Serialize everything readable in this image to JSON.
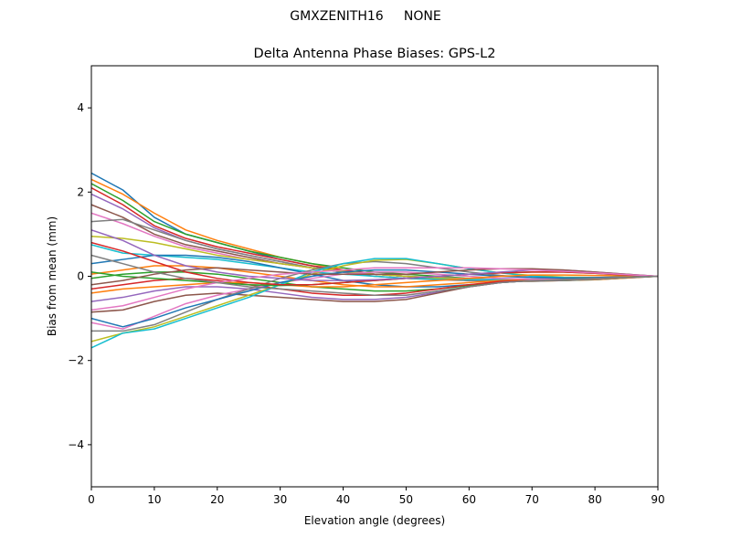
{
  "figure": {
    "suptitle": "GMXZENITH16     NONE"
  },
  "chart_data": {
    "type": "line",
    "title": "Delta Antenna Phase Biases: GPS-L2",
    "xlabel": "Elevation angle (degrees)",
    "ylabel": "Bias from mean (mm)",
    "xlim": [
      0,
      90
    ],
    "ylim": [
      -5,
      5
    ],
    "xticks": [
      0,
      10,
      20,
      30,
      40,
      50,
      60,
      70,
      80,
      90
    ],
    "xtick_labels": [
      "0",
      "10",
      "20",
      "30",
      "40",
      "50",
      "60",
      "70",
      "80",
      "90"
    ],
    "yticks": [
      -4,
      -2,
      0,
      2,
      4
    ],
    "ytick_labels": [
      "−4",
      "−2",
      "0",
      "2",
      "4"
    ],
    "grid": false,
    "legend": "none",
    "colors": [
      "#1f77b4",
      "#ff7f0e",
      "#2ca02c",
      "#d62728",
      "#9467bd",
      "#8c564b",
      "#e377c2",
      "#7f7f7f",
      "#bcbd22",
      "#17becf"
    ],
    "x": [
      0,
      5,
      10,
      15,
      20,
      25,
      30,
      35,
      40,
      45,
      50,
      55,
      60,
      65,
      70,
      75,
      80,
      85,
      90
    ],
    "series": [
      {
        "values": [
          2.45,
          2.05,
          1.4,
          1.0,
          0.8,
          0.6,
          0.4,
          0.25,
          0.1,
          0.05,
          0.0,
          -0.05,
          -0.1,
          -0.1,
          -0.1,
          -0.1,
          -0.08,
          -0.04,
          0
        ]
      },
      {
        "values": [
          2.3,
          1.95,
          1.5,
          1.1,
          0.85,
          0.65,
          0.45,
          0.3,
          0.15,
          0.05,
          0.0,
          -0.05,
          -0.1,
          -0.12,
          -0.12,
          -0.1,
          -0.08,
          -0.04,
          0
        ]
      },
      {
        "values": [
          2.2,
          1.8,
          1.3,
          1.0,
          0.8,
          0.6,
          0.45,
          0.3,
          0.2,
          0.1,
          0.05,
          0.0,
          -0.05,
          -0.08,
          -0.1,
          -0.1,
          -0.07,
          -0.03,
          0
        ]
      },
      {
        "values": [
          2.1,
          1.7,
          1.2,
          0.9,
          0.7,
          0.55,
          0.4,
          0.25,
          0.15,
          0.05,
          0.0,
          -0.05,
          -0.08,
          -0.1,
          -0.1,
          -0.09,
          -0.06,
          -0.03,
          0
        ]
      },
      {
        "values": [
          1.95,
          1.6,
          1.15,
          0.85,
          0.65,
          0.5,
          0.35,
          0.2,
          0.1,
          0.05,
          0.0,
          -0.03,
          -0.06,
          -0.08,
          -0.08,
          -0.07,
          -0.05,
          -0.02,
          0
        ]
      },
      {
        "values": [
          1.7,
          1.4,
          1.0,
          0.75,
          0.6,
          0.45,
          0.3,
          0.2,
          0.1,
          0.0,
          -0.05,
          -0.08,
          -0.1,
          -0.1,
          -0.1,
          -0.08,
          -0.05,
          -0.02,
          0
        ]
      },
      {
        "values": [
          1.5,
          1.25,
          0.95,
          0.7,
          0.55,
          0.4,
          0.3,
          0.2,
          0.1,
          0.05,
          0.0,
          -0.03,
          -0.06,
          -0.08,
          -0.08,
          -0.06,
          -0.04,
          -0.02,
          0
        ]
      },
      {
        "values": [
          1.3,
          1.35,
          1.1,
          0.85,
          0.65,
          0.5,
          0.35,
          0.2,
          0.1,
          0.05,
          0.0,
          -0.05,
          -0.1,
          -0.12,
          -0.12,
          -0.1,
          -0.07,
          -0.03,
          0
        ]
      },
      {
        "values": [
          0.95,
          0.9,
          0.8,
          0.65,
          0.5,
          0.4,
          0.3,
          0.2,
          0.12,
          0.05,
          0.0,
          -0.04,
          -0.07,
          -0.09,
          -0.09,
          -0.08,
          -0.05,
          -0.02,
          0
        ]
      },
      {
        "values": [
          0.75,
          0.55,
          0.5,
          0.45,
          0.4,
          0.3,
          0.2,
          0.1,
          0.05,
          0.0,
          -0.05,
          -0.07,
          -0.08,
          -0.08,
          -0.07,
          -0.06,
          -0.04,
          -0.02,
          0
        ]
      },
      {
        "values": [
          0.3,
          0.4,
          0.5,
          0.5,
          0.45,
          0.35,
          0.2,
          0.05,
          -0.1,
          -0.2,
          -0.25,
          -0.25,
          -0.2,
          -0.15,
          -0.1,
          -0.08,
          -0.05,
          -0.02,
          0
        ]
      },
      {
        "values": [
          0.05,
          0.15,
          0.25,
          0.25,
          0.2,
          0.1,
          0.0,
          -0.1,
          -0.2,
          -0.25,
          -0.25,
          -0.2,
          -0.15,
          -0.1,
          -0.08,
          -0.06,
          -0.04,
          -0.02,
          0
        ]
      },
      {
        "values": [
          -0.05,
          0.05,
          0.1,
          0.1,
          0.05,
          -0.05,
          -0.15,
          -0.25,
          -0.3,
          -0.35,
          -0.35,
          -0.3,
          -0.22,
          -0.15,
          -0.1,
          -0.07,
          -0.05,
          -0.02,
          0
        ]
      },
      {
        "values": [
          -0.3,
          -0.2,
          -0.1,
          -0.05,
          -0.1,
          -0.2,
          -0.3,
          -0.4,
          -0.45,
          -0.45,
          -0.4,
          -0.3,
          -0.2,
          -0.12,
          -0.1,
          -0.08,
          -0.05,
          -0.02,
          0
        ]
      },
      {
        "values": [
          -0.6,
          -0.5,
          -0.35,
          -0.25,
          -0.25,
          -0.3,
          -0.4,
          -0.5,
          -0.55,
          -0.55,
          -0.5,
          -0.38,
          -0.25,
          -0.15,
          -0.1,
          -0.08,
          -0.05,
          -0.02,
          0
        ]
      },
      {
        "values": [
          -0.85,
          -0.8,
          -0.6,
          -0.45,
          -0.4,
          -0.45,
          -0.5,
          -0.55,
          -0.6,
          -0.6,
          -0.55,
          -0.4,
          -0.25,
          -0.15,
          -0.1,
          -0.08,
          -0.05,
          -0.02,
          0
        ]
      },
      {
        "values": [
          -1.1,
          -1.25,
          -0.95,
          -0.65,
          -0.45,
          -0.3,
          -0.15,
          -0.05,
          0.05,
          0.1,
          0.1,
          0.05,
          0.0,
          -0.05,
          -0.07,
          -0.07,
          -0.05,
          -0.02,
          0
        ]
      },
      {
        "values": [
          -1.3,
          -1.3,
          -1.15,
          -0.85,
          -0.55,
          -0.3,
          -0.05,
          0.15,
          0.3,
          0.35,
          0.3,
          0.2,
          0.1,
          0.02,
          -0.03,
          -0.05,
          -0.04,
          -0.02,
          0
        ]
      },
      {
        "values": [
          -1.55,
          -1.35,
          -1.2,
          -0.95,
          -0.7,
          -0.45,
          -0.2,
          0.05,
          0.25,
          0.38,
          0.4,
          0.3,
          0.18,
          0.08,
          0.02,
          -0.02,
          -0.03,
          -0.02,
          0
        ]
      },
      {
        "values": [
          -1.7,
          -1.35,
          -1.25,
          -1.0,
          -0.75,
          -0.5,
          -0.2,
          0.1,
          0.3,
          0.42,
          0.42,
          0.3,
          0.18,
          0.08,
          0.0,
          -0.03,
          -0.04,
          -0.02,
          0
        ]
      },
      {
        "values": [
          -1.0,
          -1.2,
          -1.0,
          -0.75,
          -0.55,
          -0.35,
          -0.15,
          0.0,
          0.1,
          0.15,
          0.15,
          0.1,
          0.05,
          0.0,
          -0.03,
          -0.04,
          -0.03,
          -0.01,
          0
        ]
      },
      {
        "values": [
          -0.4,
          -0.3,
          -0.25,
          -0.2,
          -0.15,
          -0.15,
          -0.2,
          -0.25,
          -0.25,
          -0.2,
          -0.15,
          -0.1,
          -0.05,
          0.0,
          0.03,
          0.03,
          0.02,
          0.01,
          0
        ]
      },
      {
        "values": [
          0.1,
          0.0,
          -0.05,
          -0.1,
          -0.15,
          -0.2,
          -0.22,
          -0.2,
          -0.15,
          -0.1,
          -0.05,
          0.0,
          0.05,
          0.08,
          0.1,
          0.1,
          0.07,
          0.03,
          0
        ]
      },
      {
        "values": [
          0.8,
          0.6,
          0.35,
          0.1,
          -0.05,
          -0.15,
          -0.2,
          -0.2,
          -0.15,
          -0.1,
          -0.05,
          0.0,
          0.05,
          0.08,
          0.1,
          0.1,
          0.07,
          0.03,
          0
        ]
      },
      {
        "values": [
          1.1,
          0.85,
          0.5,
          0.25,
          0.1,
          0.0,
          -0.05,
          -0.1,
          -0.1,
          -0.08,
          -0.05,
          0.0,
          0.05,
          0.1,
          0.15,
          0.15,
          0.1,
          0.05,
          0
        ]
      },
      {
        "values": [
          -0.2,
          -0.1,
          0.05,
          0.15,
          0.2,
          0.15,
          0.1,
          0.05,
          0.05,
          0.05,
          0.05,
          0.1,
          0.15,
          0.18,
          0.18,
          0.15,
          0.1,
          0.05,
          0
        ]
      },
      {
        "values": [
          -0.8,
          -0.7,
          -0.5,
          -0.3,
          -0.15,
          -0.05,
          0.05,
          0.1,
          0.15,
          0.2,
          0.2,
          0.2,
          0.2,
          0.18,
          0.15,
          0.12,
          0.08,
          0.04,
          0
        ]
      },
      {
        "values": [
          0.5,
          0.3,
          0.1,
          -0.05,
          -0.15,
          -0.25,
          -0.3,
          -0.35,
          -0.4,
          -0.45,
          -0.45,
          -0.35,
          -0.25,
          -0.15,
          -0.1,
          -0.08,
          -0.05,
          -0.02,
          0
        ]
      }
    ]
  }
}
